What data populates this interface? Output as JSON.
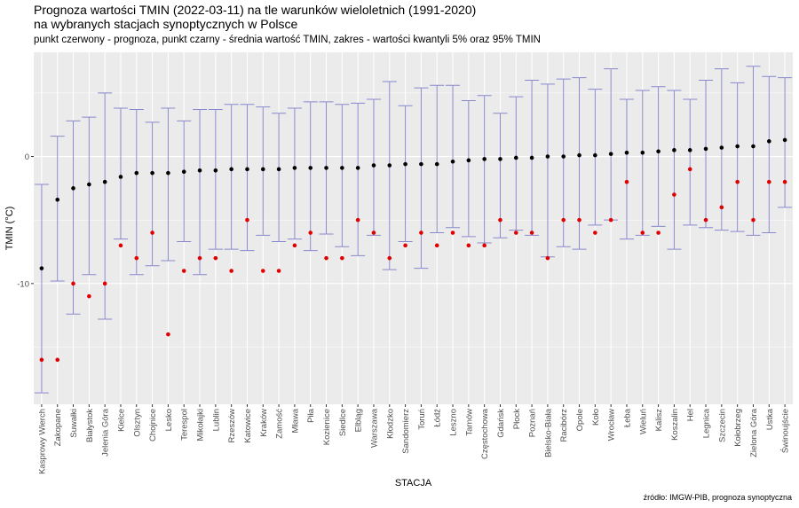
{
  "title_line1": "Prognoza wartości TMIN (2022-03-11) na tle warunków wieloletnich (1991-2020)",
  "title_line2": "na wybranych stacjach synoptycznych w Polsce",
  "subtitle": "punkt czerwony - prognoza, punkt czarny - średnia wartość TMIN, zakres - wartości kwantyli 5% oraz 95% TMIN",
  "caption": "źródło: IMGW-PIB, prognoza synoptyczna",
  "colors": {
    "forecast": "#e00000",
    "mean": "#000000",
    "range": "#8888cc",
    "panel": "#ebebeb",
    "grid": "#ffffff"
  },
  "chart_data": {
    "type": "scatter",
    "xlabel": "STACJA",
    "ylabel": "TMIN (°C)",
    "ylim": [
      -19.5,
      8.2
    ],
    "yticks": [
      -10,
      0
    ],
    "grid": true,
    "categories": [
      "Kasprowy Wierch",
      "Zakopane",
      "Suwałki",
      "Białystok",
      "Jelenia Góra",
      "Kielce",
      "Olsztyn",
      "Chojnice",
      "Lesko",
      "Terespol",
      "Mikołajki",
      "Lublin",
      "Rzeszów",
      "Katowice",
      "Kraków",
      "Zamość",
      "Mława",
      "Piła",
      "Kozienice",
      "Siedlce",
      "Elbląg",
      "Warszawa",
      "Kłodzko",
      "Sandomierz",
      "Toruń",
      "Łódź",
      "Leszno",
      "Tarnów",
      "Częstochowa",
      "Gdańsk",
      "Płock",
      "Poznań",
      "Bielsko-Biała",
      "Racibórz",
      "Opole",
      "Koło",
      "Wrocław",
      "Łeba",
      "Wieluń",
      "Kalisz",
      "Koszalin",
      "Hel",
      "Legnica",
      "Szczecin",
      "Kołobrzeg",
      "Zielona Góra",
      "Ustka",
      "Świnoujście"
    ],
    "series": [
      {
        "name": "prognoza",
        "values": [
          -16,
          -16,
          -10,
          -11,
          -10,
          -7,
          -8,
          -6,
          -14,
          -9,
          -8,
          -8,
          -9,
          -5,
          -9,
          -9,
          -7,
          -6,
          -8,
          -8,
          -5,
          -6,
          -8,
          -7,
          -6,
          -7,
          -6,
          -7,
          -7,
          -5,
          -6,
          -6,
          -8,
          -5,
          -5,
          -6,
          -5,
          -2,
          -6,
          -6,
          -3,
          -1,
          -5,
          -4,
          -2,
          -5,
          -2,
          -2
        ]
      },
      {
        "name": "średnia",
        "values": [
          -8.8,
          -3.4,
          -2.5,
          -2.2,
          -2.0,
          -1.6,
          -1.3,
          -1.3,
          -1.3,
          -1.2,
          -1.1,
          -1.1,
          -1.0,
          -1.0,
          -1.0,
          -1.0,
          -0.9,
          -0.9,
          -0.9,
          -0.9,
          -0.9,
          -0.7,
          -0.7,
          -0.6,
          -0.6,
          -0.6,
          -0.4,
          -0.3,
          -0.2,
          -0.2,
          -0.1,
          -0.1,
          0.0,
          0.0,
          0.1,
          0.1,
          0.2,
          0.3,
          0.3,
          0.4,
          0.5,
          0.5,
          0.6,
          0.7,
          0.8,
          0.8,
          1.2,
          1.3
        ]
      },
      {
        "name": "kwantyl 5%",
        "values": [
          -18.6,
          -9.8,
          -12.4,
          -9.3,
          -12.8,
          -6.5,
          -9.3,
          -8.6,
          -8.2,
          -6.7,
          -9.3,
          -7.3,
          -7.3,
          -7.4,
          -6.2,
          -6.7,
          -6.5,
          -7.4,
          -6.1,
          -7.1,
          -7.8,
          -6.2,
          -8.9,
          -6.7,
          -8.8,
          -6.0,
          -5.6,
          -6.3,
          -6.8,
          -6.4,
          -5.8,
          -6.2,
          -7.9,
          -7.1,
          -7.3,
          -5.4,
          -5.0,
          -6.5,
          -6.2,
          -5.5,
          -7.3,
          -5.4,
          -5.6,
          -5.8,
          -5.9,
          -6.2,
          -6.0,
          -4.0
        ]
      },
      {
        "name": "kwantyl 95%",
        "values": [
          -2.2,
          1.6,
          2.8,
          3.1,
          5.0,
          3.8,
          3.7,
          2.7,
          3.8,
          2.8,
          3.7,
          3.7,
          4.1,
          4.1,
          3.9,
          3.4,
          3.8,
          4.3,
          4.3,
          4.1,
          4.2,
          4.5,
          5.9,
          4.0,
          5.4,
          5.6,
          5.6,
          4.4,
          4.8,
          3.4,
          4.7,
          6.0,
          5.7,
          6.1,
          6.2,
          5.3,
          6.9,
          4.5,
          5.2,
          5.5,
          5.2,
          4.5,
          6.0,
          6.9,
          5.8,
          7.1,
          6.3,
          6.2
        ]
      }
    ]
  }
}
